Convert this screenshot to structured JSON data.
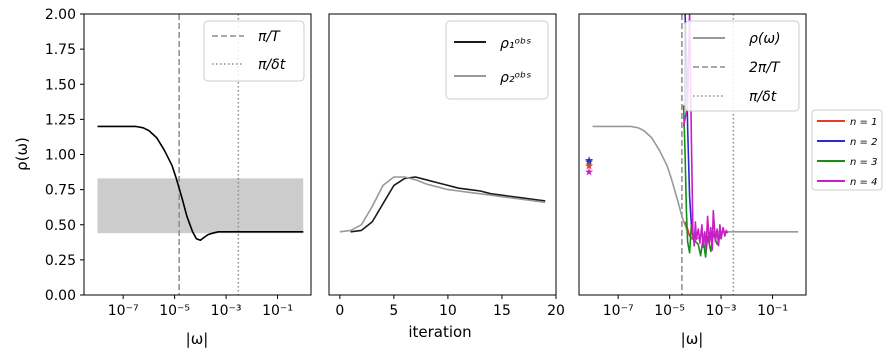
{
  "chart_data": [
    {
      "type": "line",
      "xscale": "log",
      "xlabel": "|ω|",
      "ylabel": "ρ(ω)",
      "xlim": [
        3e-09,
        2
      ],
      "ylim": [
        0,
        2
      ],
      "xticks": [
        "10⁻⁷",
        "10⁻⁵",
        "10⁻³",
        "10⁻¹"
      ],
      "yticks": [
        "0.00",
        "0.25",
        "0.50",
        "0.75",
        "1.00",
        "1.25",
        "1.50",
        "1.75",
        "2.00"
      ],
      "shaded_band": {
        "x": [
          1e-08,
          1
        ],
        "y": [
          0.44,
          0.83
        ],
        "color": "#cccccc"
      },
      "vlines": [
        {
          "x": 1.5e-05,
          "style": "dashed",
          "color": "#8c8c8c",
          "label": "π/T"
        },
        {
          "x": 0.003,
          "style": "dotted",
          "color": "#8c8c8c",
          "label": "π/δt"
        }
      ],
      "series": [
        {
          "color": "#000000",
          "x": [
            1e-08,
            1e-07,
            3e-07,
            6e-07,
            1e-06,
            2e-06,
            4e-06,
            8e-06,
            1.2e-05,
            2e-05,
            3e-05,
            5e-05,
            7e-05,
            0.0001,
            0.00014,
            0.0002,
            0.0003,
            0.0005,
            0.001,
            0.01,
            0.1,
            1
          ],
          "y": [
            1.2,
            1.2,
            1.2,
            1.19,
            1.17,
            1.12,
            1.03,
            0.92,
            0.82,
            0.68,
            0.56,
            0.45,
            0.4,
            0.39,
            0.41,
            0.43,
            0.44,
            0.45,
            0.45,
            0.45,
            0.45,
            0.45
          ]
        }
      ],
      "legend": {
        "placement": "top-right",
        "entries": [
          "π/T",
          "π/δt"
        ]
      }
    },
    {
      "type": "line",
      "xlabel": "iteration",
      "ylabel": "",
      "xlim": [
        -1,
        20
      ],
      "ylim": [
        0,
        2
      ],
      "xticks": [
        "0",
        "5",
        "10",
        "15",
        "20"
      ],
      "series": [
        {
          "name": "ρ₁ᵒᵇˢ",
          "color": "#1a1a1a",
          "x": [
            1,
            2,
            3,
            4,
            5,
            6,
            7,
            8,
            9,
            10,
            11,
            12,
            13,
            14,
            15,
            16,
            17,
            18,
            19
          ],
          "y": [
            0.45,
            0.46,
            0.52,
            0.65,
            0.78,
            0.83,
            0.84,
            0.82,
            0.8,
            0.78,
            0.76,
            0.75,
            0.74,
            0.72,
            0.71,
            0.7,
            0.69,
            0.68,
            0.67
          ]
        },
        {
          "name": "ρ₂ᵒᵇˢ",
          "color": "#999999",
          "x": [
            0,
            1,
            2,
            3,
            4,
            5,
            6,
            7,
            8,
            9,
            10,
            11,
            12,
            13,
            14,
            15,
            16,
            17,
            18,
            19
          ],
          "y": [
            0.45,
            0.46,
            0.5,
            0.63,
            0.78,
            0.84,
            0.84,
            0.82,
            0.79,
            0.77,
            0.75,
            0.74,
            0.73,
            0.72,
            0.71,
            0.7,
            0.69,
            0.68,
            0.67,
            0.66
          ]
        }
      ],
      "legend": {
        "placement": "top-right",
        "entries": [
          "ρ₁ᵒᵇˢ",
          "ρ₂ᵒᵇˢ"
        ]
      }
    },
    {
      "type": "line",
      "xscale": "log",
      "xlabel": "|ω|",
      "ylabel": "",
      "xlim": [
        3e-09,
        2
      ],
      "ylim": [
        0,
        2
      ],
      "xticks": [
        "10⁻⁷",
        "10⁻⁵",
        "10⁻³",
        "10⁻¹"
      ],
      "vlines": [
        {
          "x": 3e-05,
          "style": "dashed",
          "color": "#8c8c8c",
          "label": "2π/T"
        },
        {
          "x": 0.003,
          "style": "dotted",
          "color": "#8c8c8c",
          "label": "π/δt"
        }
      ],
      "series": [
        {
          "name": "ρ(ω)",
          "color": "#999999",
          "x": [
            1e-08,
            1e-07,
            3e-07,
            6e-07,
            1e-06,
            2e-06,
            4e-06,
            8e-06,
            1.2e-05,
            2e-05,
            3e-05,
            5e-05,
            7e-05,
            0.0001,
            0.00014,
            0.0002,
            0.0003,
            0.0005,
            0.001,
            0.01,
            0.1,
            1
          ],
          "y": [
            1.2,
            1.2,
            1.2,
            1.19,
            1.17,
            1.12,
            1.03,
            0.92,
            0.82,
            0.68,
            0.56,
            0.45,
            0.4,
            0.39,
            0.41,
            0.43,
            0.44,
            0.45,
            0.45,
            0.45,
            0.45,
            0.45
          ]
        },
        {
          "name": "n = 1",
          "color": "#e8392c",
          "x": [
            4e-05,
            5e-05,
            6e-05,
            8e-05,
            0.0001
          ],
          "y": [
            0.52,
            0.47,
            0.42,
            0.4,
            0.42
          ]
        },
        {
          "name": "n = 2",
          "color": "#2b2bd6",
          "x": [
            4e-05,
            4.5e-05,
            5e-05,
            6e-05,
            7e-05,
            8e-05,
            0.0001
          ],
          "y": [
            2.0,
            1.7,
            1.2,
            0.7,
            0.5,
            0.42,
            0.4
          ]
        },
        {
          "name": "n = 3",
          "color": "#1a8c1a",
          "x": [
            3.5e-05,
            4e-05,
            4.5e-05,
            5e-05,
            6e-05,
            7e-05,
            8e-05,
            0.0001,
            0.00013,
            0.00016,
            0.0002,
            0.00025,
            0.0003,
            0.0004,
            0.0005,
            0.0007,
            0.001
          ],
          "y": [
            1.35,
            1.0,
            0.6,
            0.38,
            0.3,
            0.5,
            0.42,
            0.38,
            0.36,
            0.28,
            0.4,
            0.27,
            0.42,
            0.31,
            0.44,
            0.36,
            0.43
          ]
        },
        {
          "name": "n = 4",
          "color": "#c81ec8",
          "x": [
            3.5e-05,
            5e-05,
            6e-05,
            7e-05,
            8e-05,
            9e-05,
            0.0001,
            0.00011,
            0.00013,
            0.00015,
            0.00018,
            0.0002,
            0.00023,
            0.00026,
            0.0003,
            0.00035,
            0.0004,
            0.00045,
            0.0005,
            0.0006,
            0.0007,
            0.0008,
            0.0009,
            0.001,
            0.0012,
            0.0014,
            0.0016,
            0.0018
          ],
          "y": [
            1.2,
            1.35,
            2.0,
            1.1,
            0.45,
            0.35,
            0.52,
            0.4,
            0.47,
            0.37,
            0.5,
            0.34,
            0.45,
            0.33,
            0.56,
            0.36,
            0.48,
            0.32,
            0.6,
            0.38,
            0.47,
            0.35,
            0.5,
            0.4,
            0.48,
            0.42,
            0.46,
            0.44
          ]
        }
      ],
      "star_markers": [
        {
          "color": "#1a8c1a",
          "y": 0.95
        },
        {
          "color": "#2b2bd6",
          "y": 0.96
        },
        {
          "color": "#e8392c",
          "y": 0.92
        },
        {
          "color": "#c81ec8",
          "y": 0.88
        }
      ],
      "legend": {
        "placement": "top-right",
        "entries": [
          "ρ(ω)",
          "2π/T",
          "π/δt"
        ]
      },
      "outer_legend": {
        "placement": "right",
        "entries": [
          "n = 1",
          "n = 2",
          "n = 3",
          "n = 4"
        ]
      }
    }
  ]
}
